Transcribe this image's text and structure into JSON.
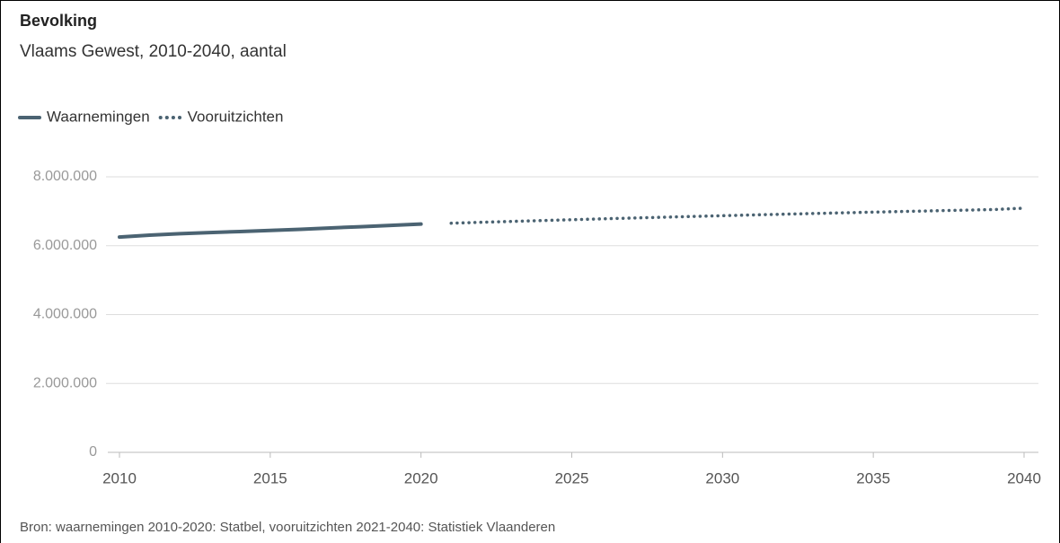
{
  "chart_data": {
    "type": "line",
    "title": "Bevolking",
    "subtitle": "Vlaams Gewest, 2010-2040, aantal",
    "source": "Bron: waarnemingen 2010-2020: Statbel, vooruitzichten 2021-2040: Statistiek Vlaanderen",
    "x": [
      2010,
      2011,
      2012,
      2013,
      2014,
      2015,
      2016,
      2017,
      2018,
      2019,
      2020,
      2021,
      2022,
      2023,
      2024,
      2025,
      2026,
      2027,
      2028,
      2029,
      2030,
      2031,
      2032,
      2033,
      2034,
      2035,
      2036,
      2037,
      2038,
      2039,
      2040
    ],
    "series": [
      {
        "name": "Waarnemingen",
        "color": "#4b6372",
        "style": "solid",
        "values": [
          6252000,
          6306000,
          6350000,
          6381000,
          6411000,
          6444000,
          6477000,
          6516000,
          6552000,
          6589000,
          6629000,
          null,
          null,
          null,
          null,
          null,
          null,
          null,
          null,
          null,
          null,
          null,
          null,
          null,
          null,
          null,
          null,
          null,
          null,
          null,
          null
        ]
      },
      {
        "name": "Vooruitzichten",
        "color": "#4b6372",
        "style": "dotted",
        "values": [
          null,
          null,
          null,
          null,
          null,
          null,
          null,
          null,
          null,
          null,
          null,
          6653000,
          6680000,
          6705000,
          6730000,
          6755000,
          6780000,
          6803000,
          6826000,
          6849000,
          6871000,
          6893000,
          6914000,
          6935000,
          6955000,
          6975000,
          6994000,
          7013000,
          7032000,
          7050000,
          7090000
        ]
      }
    ],
    "xlim": [
      2010,
      2040
    ],
    "xticks": [
      2010,
      2015,
      2020,
      2025,
      2030,
      2035,
      2040
    ],
    "ylim": [
      0,
      8000000
    ],
    "yticks": [
      0,
      {
        "value": 2000000,
        "label": "2.000.000"
      },
      {
        "value": 4000000,
        "label": "4.000.000"
      },
      {
        "value": 6000000,
        "label": "6.000.000"
      },
      {
        "value": 8000000,
        "label": "8.000.000"
      }
    ],
    "grid": true
  }
}
